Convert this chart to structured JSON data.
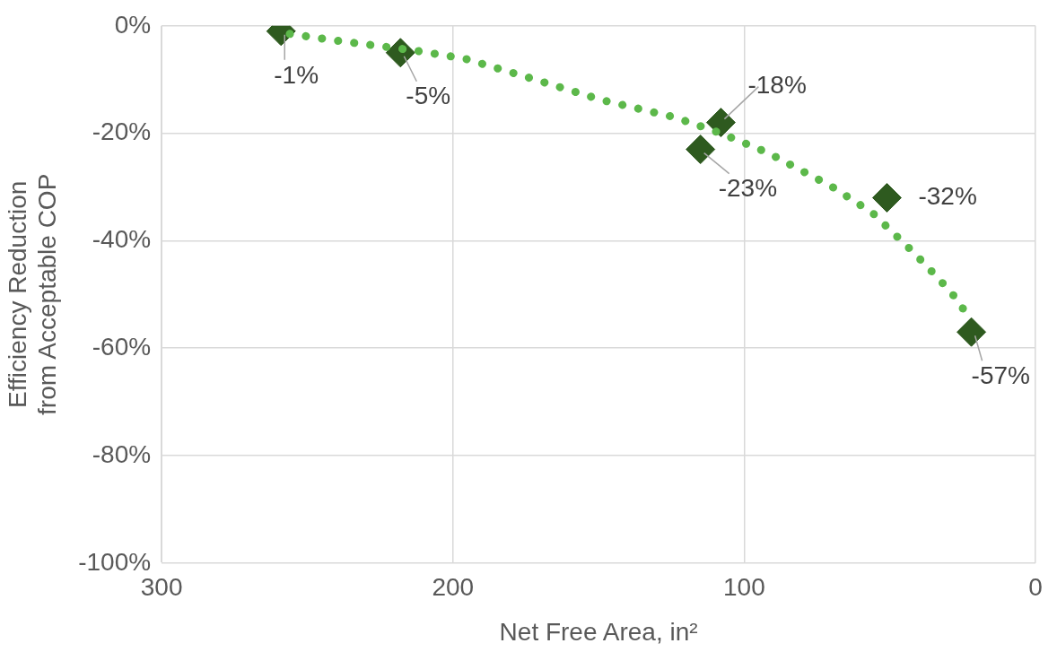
{
  "chart_data": {
    "type": "scatter",
    "xlabel": "Net Free Area, in²",
    "ylabel": "Efficiency Reduction\nfrom Acceptable COP",
    "xlim": [
      300,
      0
    ],
    "xticks": [
      300,
      200,
      100,
      0
    ],
    "ylim": [
      -100,
      0
    ],
    "yticks": [
      {
        "value": -100,
        "label": "-100%"
      },
      {
        "value": -80,
        "label": "-80%"
      },
      {
        "value": -60,
        "label": "-60%"
      },
      {
        "value": -40,
        "label": "-40%"
      },
      {
        "value": -20,
        "label": "-20%"
      },
      {
        "value": 0,
        "label": "0%"
      }
    ],
    "grid": true,
    "legend": false,
    "series": [
      {
        "type": "line",
        "color": "#5cb84a",
        "line_style": "dotted",
        "marker": "none",
        "x": [
          256,
          238,
          213,
          196,
          173,
          149,
          124,
          108,
          92,
          70,
          56,
          42,
          33,
          27,
          22
        ],
        "values": [
          -1.5,
          -2.9,
          -4.6,
          -6.1,
          -9.8,
          -13.8,
          -17,
          -20,
          -23.6,
          -29.9,
          -34.8,
          -42.1,
          -47.2,
          -50.9,
          -55
        ]
      },
      {
        "color": "#2e5a1f",
        "marker": "diamond",
        "x": [
          259,
          218,
          108,
          115,
          51,
          22
        ],
        "values": [
          -1,
          -5,
          -18,
          -23,
          -32,
          -57
        ],
        "value_labels": [
          "-1%",
          "-5%",
          "-18%",
          "-23%",
          "-32%",
          "-57%"
        ]
      }
    ]
  }
}
